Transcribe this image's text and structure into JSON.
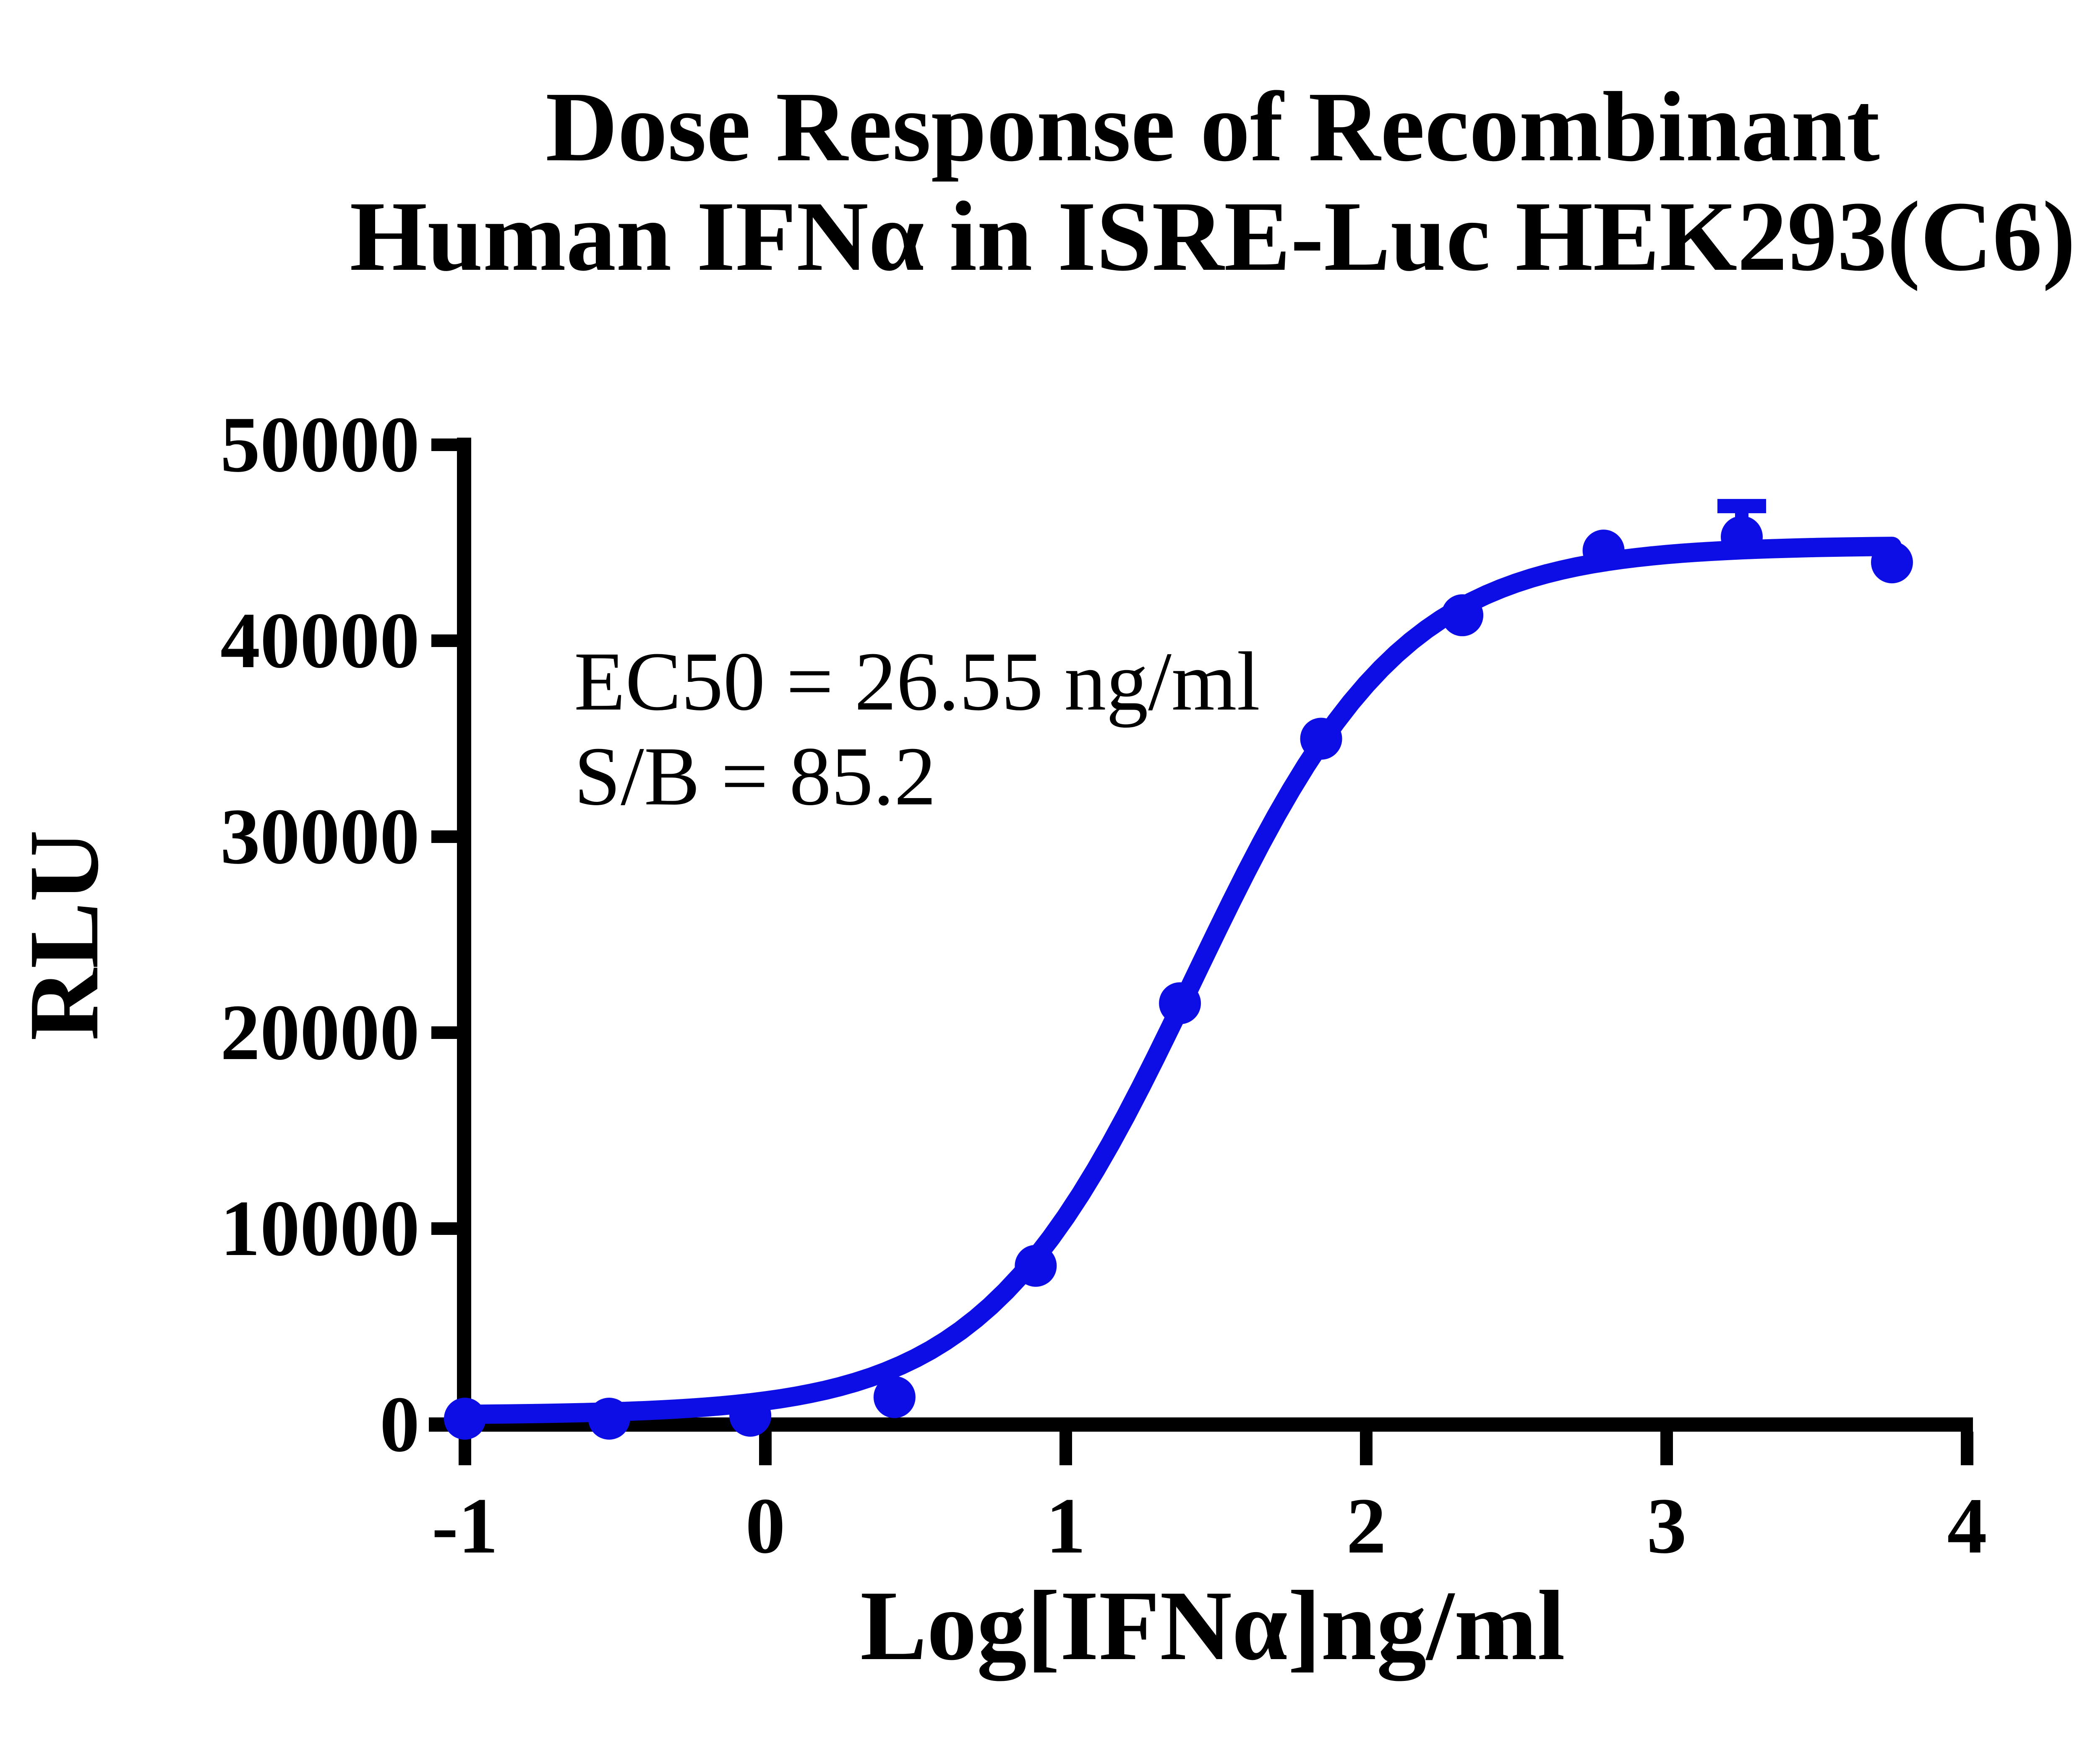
{
  "page": {
    "background": "#ffffff"
  },
  "chart_data": {
    "type": "scatter",
    "title_lines": [
      "Dose Response of Recombinant",
      "Human IFNα in ISRE-Luc HEK293(C6)"
    ],
    "xlabel": "Log[IFNα]ng/ml",
    "ylabel": "RLU",
    "annotation_lines": [
      "EC50 = 26.55 ng/ml",
      "S/B = 85.2"
    ],
    "x_ticks": [
      -1,
      0,
      1,
      2,
      3,
      4
    ],
    "x_tick_labels": [
      "-1",
      "0",
      "1",
      "2",
      "3",
      "4"
    ],
    "y_ticks": [
      0,
      10000,
      20000,
      30000,
      40000,
      50000
    ],
    "y_tick_labels": [
      "0",
      "10000",
      "20000",
      "30000",
      "40000",
      "50000"
    ],
    "xlim": [
      -1,
      4
    ],
    "ylim": [
      0,
      50000
    ],
    "grid": false,
    "legend": "none",
    "axis_color": "#000000",
    "series": [
      {
        "name": "Recombinant Human IFNα",
        "color": "#0d0ee6",
        "marker": "circle",
        "points": [
          {
            "x": -1.0,
            "y": 300
          },
          {
            "x": -0.52,
            "y": 300
          },
          {
            "x": -0.05,
            "y": 450
          },
          {
            "x": 0.43,
            "y": 1400
          },
          {
            "x": 0.9,
            "y": 8100
          },
          {
            "x": 1.38,
            "y": 21500
          },
          {
            "x": 1.85,
            "y": 35000
          },
          {
            "x": 2.32,
            "y": 41300
          },
          {
            "x": 2.79,
            "y": 44600
          },
          {
            "x": 3.25,
            "y": 45300
          },
          {
            "x": 3.75,
            "y": 44000
          }
        ],
        "error_bars": [
          {
            "x": 3.25,
            "y": 45300,
            "plus": 1570
          }
        ],
        "fit": {
          "model": "4PL",
          "bottom": 480,
          "top": 44870,
          "logEC50": 1.424,
          "hillslope": 1.25,
          "ec50_label": "26.55 ng/ml",
          "signal_to_background": 85.2,
          "curve_x_range": [
            -1.0,
            3.75
          ]
        }
      }
    ]
  }
}
